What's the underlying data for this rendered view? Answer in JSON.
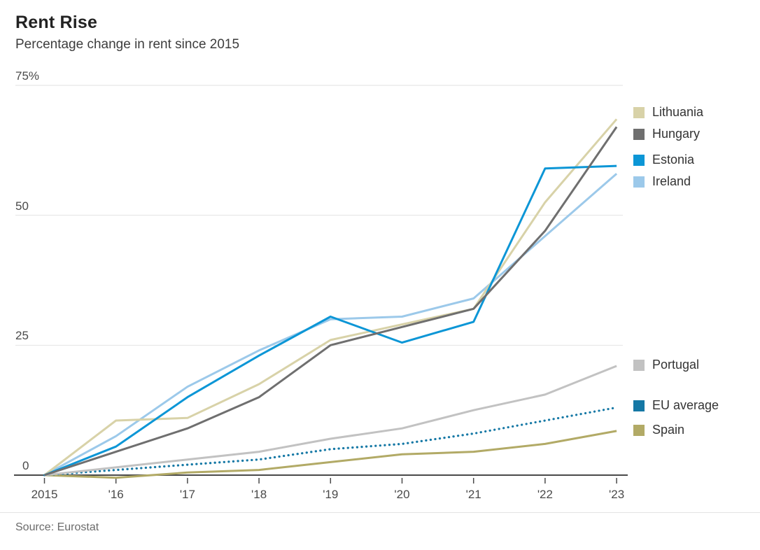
{
  "header": {
    "title": "Rent Rise",
    "subtitle": "Percentage change in rent since 2015"
  },
  "source": {
    "text": "Source: Eurostat"
  },
  "colors": {
    "lithuania": "#d8d2a8",
    "hungary": "#6f6f6f",
    "estonia": "#0c96d6",
    "ireland": "#9cc9ea",
    "portugal": "#c2c2c2",
    "eu_average": "#1578a5",
    "spain": "#b2aa66",
    "grid": "#e2e2e2",
    "axis": "#4a4a4a"
  },
  "chart_data": {
    "type": "line",
    "title": "Rent Rise",
    "subtitle": "Percentage change in rent since 2015",
    "xlabel": "",
    "ylabel": "Percentage change in rent since 2015 (%)",
    "categories": [
      "2015",
      "'16",
      "'17",
      "'18",
      "'19",
      "'20",
      "'21",
      "'22",
      "'23"
    ],
    "x_years": [
      2015,
      2016,
      2017,
      2018,
      2019,
      2020,
      2021,
      2022,
      2023
    ],
    "ylim": [
      -2,
      78
    ],
    "y_ticks": [
      {
        "value": 75,
        "label": "75%"
      },
      {
        "value": 50,
        "label": "50"
      },
      {
        "value": 25,
        "label": "25"
      },
      {
        "value": 0,
        "label": "0"
      }
    ],
    "grid": "horizontal",
    "legend_position": "right",
    "series": [
      {
        "name": "Lithuania",
        "color": "#d8d2a8",
        "style": "solid",
        "legend_group": 1,
        "values": [
          0,
          10.5,
          11,
          17.5,
          26,
          29,
          32,
          52.5,
          68.5
        ]
      },
      {
        "name": "Hungary",
        "color": "#6f6f6f",
        "style": "solid",
        "legend_group": 1,
        "values": [
          0,
          4.5,
          9,
          15,
          25,
          28.5,
          32,
          47,
          67
        ]
      },
      {
        "name": "Estonia",
        "color": "#0c96d6",
        "style": "solid",
        "legend_group": 1,
        "values": [
          0,
          5.5,
          15,
          23,
          30.5,
          25.5,
          29.5,
          59,
          59.5
        ]
      },
      {
        "name": "Ireland",
        "color": "#9cc9ea",
        "style": "solid",
        "legend_group": 1,
        "values": [
          0,
          7.5,
          17,
          24,
          30,
          30.5,
          34,
          46,
          58
        ]
      },
      {
        "name": "Portugal",
        "color": "#c2c2c2",
        "style": "solid",
        "legend_group": 2,
        "values": [
          0,
          1.5,
          3,
          4.5,
          7,
          9,
          12.5,
          15.5,
          21
        ]
      },
      {
        "name": "EU average",
        "color": "#1578a5",
        "style": "dotted",
        "legend_group": 2,
        "values": [
          0,
          1,
          2,
          3,
          5,
          6,
          8,
          10.5,
          13
        ]
      },
      {
        "name": "Spain",
        "color": "#b2aa66",
        "style": "solid",
        "legend_group": 2,
        "values": [
          0,
          -0.5,
          0.5,
          1,
          2.5,
          4,
          4.5,
          6,
          8.5
        ]
      }
    ]
  }
}
